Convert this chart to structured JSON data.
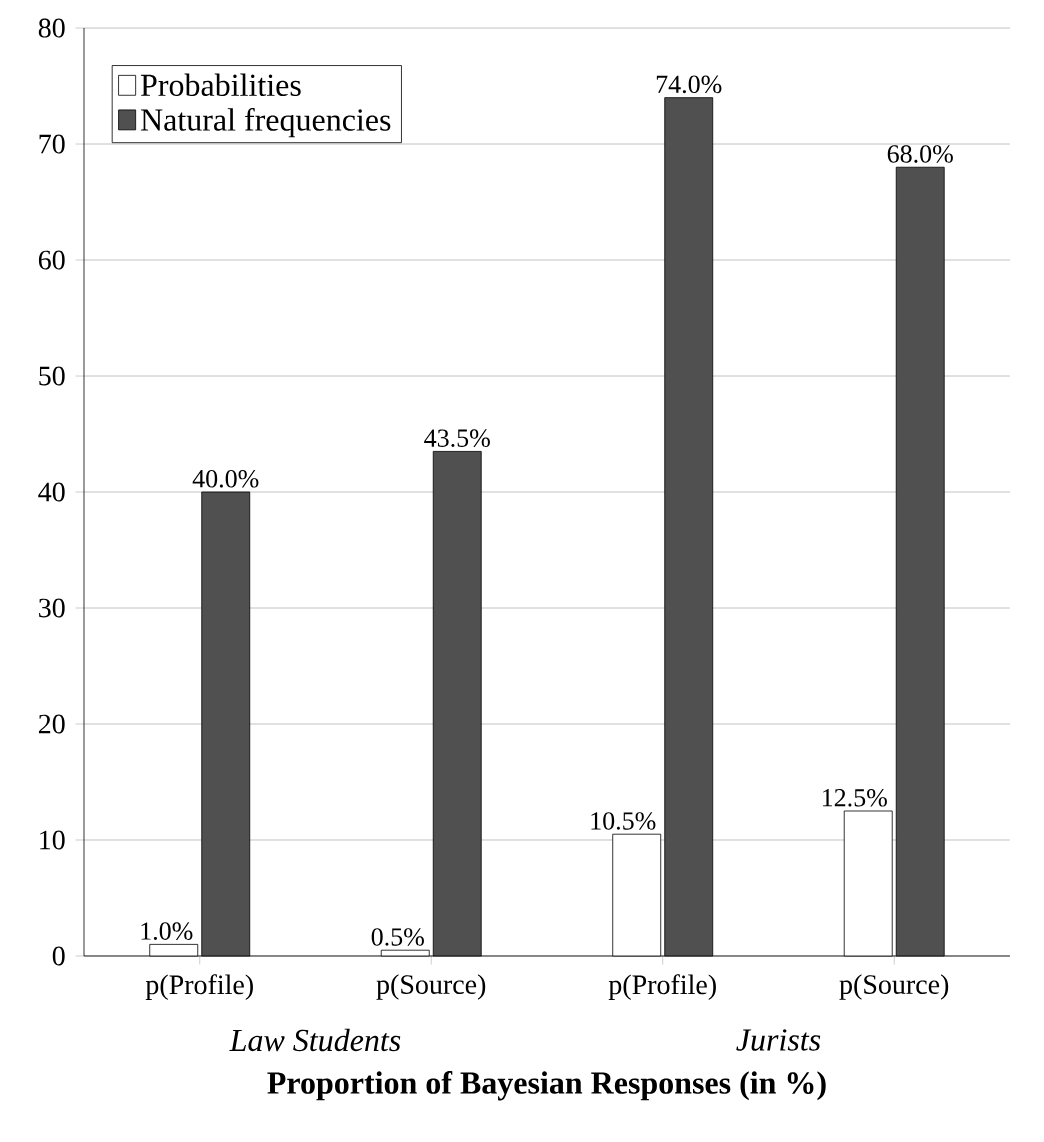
{
  "chart_data": {
    "type": "bar",
    "categories": [
      "p(Profile)",
      "p(Source)",
      "p(Profile)",
      "p(Source)"
    ],
    "series": [
      {
        "name": "Probabilities",
        "color": "#ffffff",
        "values": [
          1.0,
          0.5,
          10.5,
          12.5
        ],
        "value_labels": [
          "1.0%",
          "0.5%",
          "10.5%",
          "12.5%"
        ]
      },
      {
        "name": "Natural frequencies",
        "color": "#505050",
        "values": [
          40.0,
          43.5,
          74.0,
          68.0
        ],
        "value_labels": [
          "40.0%",
          "43.5%",
          "74.0%",
          "68.0%"
        ]
      }
    ],
    "xlabel": "Proportion of Bayesian Responses (in %)",
    "annotations": [
      "Law Students",
      "Jurists"
    ],
    "ylim": [
      0,
      80
    ],
    "yticks": [
      0,
      10,
      20,
      30,
      40,
      50,
      60,
      70,
      80
    ],
    "grid": "y",
    "legend": "top left"
  }
}
